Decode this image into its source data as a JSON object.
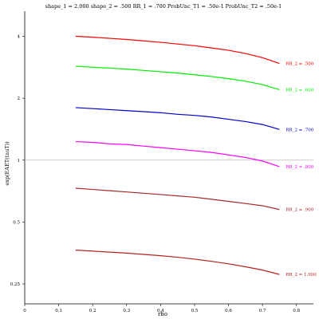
{
  "chart_data": {
    "type": "line",
    "title": "shape_1 = 2.000  shape_2 = .500  RR_1 = .700  ProbUnc_T1 = .50e-1  ProbUnc_T2 = .50e-1",
    "xlabel": "rho",
    "ylabel": "exp(EAET(tauT))",
    "xlim": [
      0,
      0.85
    ],
    "ylim": [
      0.2,
      5.3
    ],
    "y_scale": "log",
    "x_ticks": [
      "0",
      "0.1",
      "0.2",
      "0.3",
      "0.4",
      "0.5",
      "0.6",
      "0.7",
      "0.8"
    ],
    "y_ticks": [
      "0.25",
      "0.5",
      "1",
      "2",
      "4"
    ],
    "reference_line_y": 1,
    "grid": false,
    "x": [
      0.15,
      0.2,
      0.25,
      0.3,
      0.35,
      0.4,
      0.45,
      0.5,
      0.55,
      0.6,
      0.65,
      0.7,
      0.75
    ],
    "series": [
      {
        "name": "RR_2 = .500",
        "color": "#ff0000",
        "values": [
          4.0,
          3.96,
          3.91,
          3.86,
          3.8,
          3.74,
          3.67,
          3.6,
          3.51,
          3.42,
          3.3,
          3.15,
          2.95
        ]
      },
      {
        "name": "RR_2 = .600",
        "color": "#00ee00",
        "values": [
          2.86,
          2.83,
          2.8,
          2.77,
          2.73,
          2.69,
          2.65,
          2.6,
          2.55,
          2.49,
          2.42,
          2.33,
          2.2
        ]
      },
      {
        "name": "RR_2 = .700",
        "color": "#0000cc",
        "values": [
          1.8,
          1.78,
          1.76,
          1.74,
          1.72,
          1.7,
          1.67,
          1.65,
          1.62,
          1.58,
          1.54,
          1.49,
          1.41
        ]
      },
      {
        "name": "RR_2 = .800",
        "color": "#ff00ff",
        "values": [
          1.23,
          1.22,
          1.2,
          1.19,
          1.17,
          1.15,
          1.13,
          1.11,
          1.09,
          1.06,
          1.03,
          0.99,
          0.93
        ]
      },
      {
        "name": "RR_2 = .900",
        "color": "#a52a2a",
        "values": [
          0.73,
          0.72,
          0.71,
          0.7,
          0.69,
          0.68,
          0.67,
          0.66,
          0.645,
          0.63,
          0.615,
          0.6,
          0.575
        ]
      },
      {
        "name": "RR_2 = 1.000",
        "color": "#b22222",
        "values": [
          0.365,
          0.361,
          0.357,
          0.353,
          0.348,
          0.343,
          0.337,
          0.33,
          0.322,
          0.313,
          0.303,
          0.292,
          0.278
        ]
      }
    ]
  }
}
